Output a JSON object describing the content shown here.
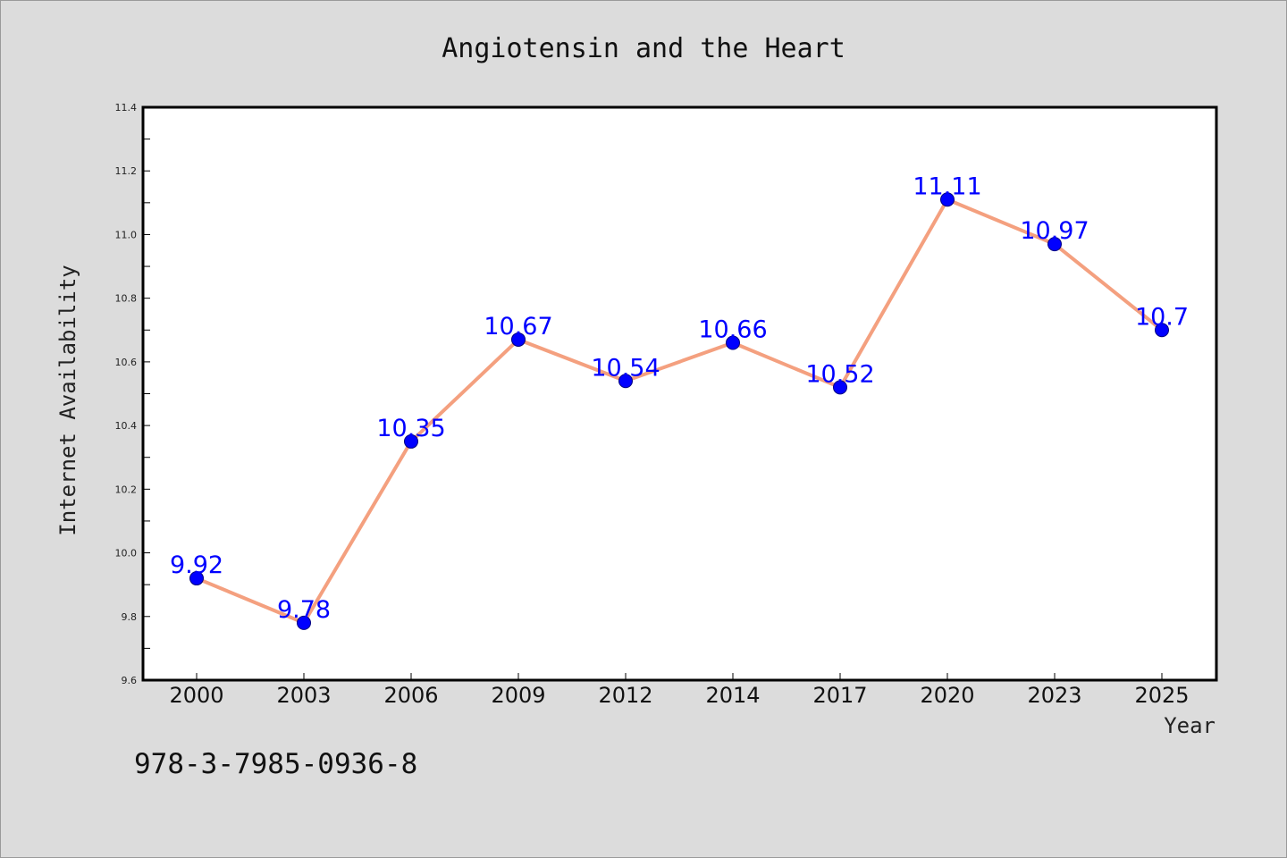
{
  "chart_data": {
    "type": "line",
    "title": "Angiotensin and the Heart",
    "xlabel": "Year",
    "ylabel": "Internet Availability",
    "categories": [
      "2000",
      "2003",
      "2006",
      "2009",
      "2012",
      "2014",
      "2017",
      "2020",
      "2023",
      "2025"
    ],
    "series": [
      {
        "values": [
          9.92,
          9.78,
          10.35,
          10.67,
          10.54,
          10.66,
          10.52,
          11.11,
          10.97,
          10.7
        ]
      }
    ],
    "data_labels": [
      "9.92",
      "9.78",
      "10.35",
      "10.67",
      "10.54",
      "10.66",
      "10.52",
      "11.11",
      "10.97",
      "10.7"
    ],
    "ylim": [
      9.6,
      11.4
    ],
    "yticks": [
      "9.6",
      "9.8",
      "10.0",
      "10.2",
      "10.4",
      "10.6",
      "10.8",
      "11.0",
      "11.2",
      "11.4"
    ],
    "grid": false,
    "legend": "none",
    "colors": {
      "line": "#f4a07f",
      "marker": "#0000ff",
      "marker_edge": "#000080",
      "data_label": "#0000ff",
      "plot_background": "#ffffff",
      "page_background": "#dcdcdc"
    }
  },
  "footer": {
    "isbn": "978-3-7985-0936-8"
  }
}
